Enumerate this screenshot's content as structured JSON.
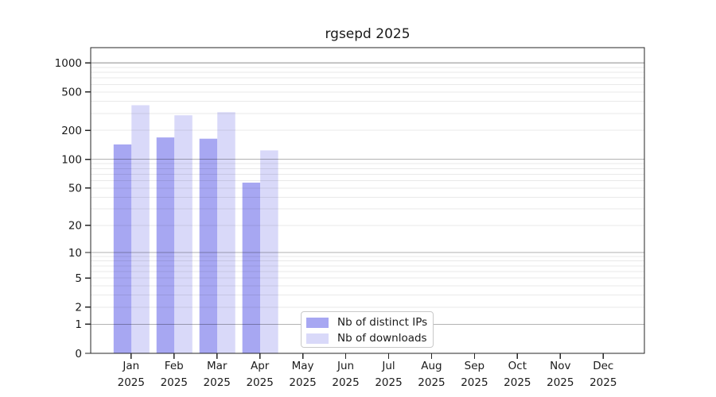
{
  "chart_data": {
    "type": "bar",
    "title": "rgsepd 2025",
    "categories": [
      "Jan",
      "Feb",
      "Mar",
      "Apr",
      "May",
      "Jun",
      "Jul",
      "Aug",
      "Sep",
      "Oct",
      "Nov",
      "Dec"
    ],
    "year_label": "2025",
    "series": [
      {
        "name": "Nb of distinct IPs",
        "color": "#a7a7f2",
        "values": [
          143,
          169,
          164,
          57,
          null,
          null,
          null,
          null,
          null,
          null,
          null,
          null
        ]
      },
      {
        "name": "Nb of downloads",
        "color": "#d9d9f9",
        "values": [
          365,
          287,
          309,
          124,
          null,
          null,
          null,
          null,
          null,
          null,
          null,
          null
        ]
      }
    ],
    "y_ticks": [
      0,
      1,
      2,
      5,
      10,
      20,
      50,
      100,
      200,
      500,
      1000
    ],
    "y_scale": "log10(value+1)",
    "ylim": [
      0,
      1430
    ],
    "grid": "horizontal; light minor lines at 2-9 per decade, darker lines at 1, 10, 100, 1000",
    "legend_position": "lower center"
  },
  "colors": {
    "background": "#ffffff",
    "bar_distinct_ips": "#a7a7f2",
    "bar_downloads": "#d9d9f9",
    "grid_minor": "rgba(0,0,0,0.085)",
    "grid_major": "rgba(0,0,0,0.30)",
    "spine": "#262626",
    "text": "#1a1a1a"
  }
}
